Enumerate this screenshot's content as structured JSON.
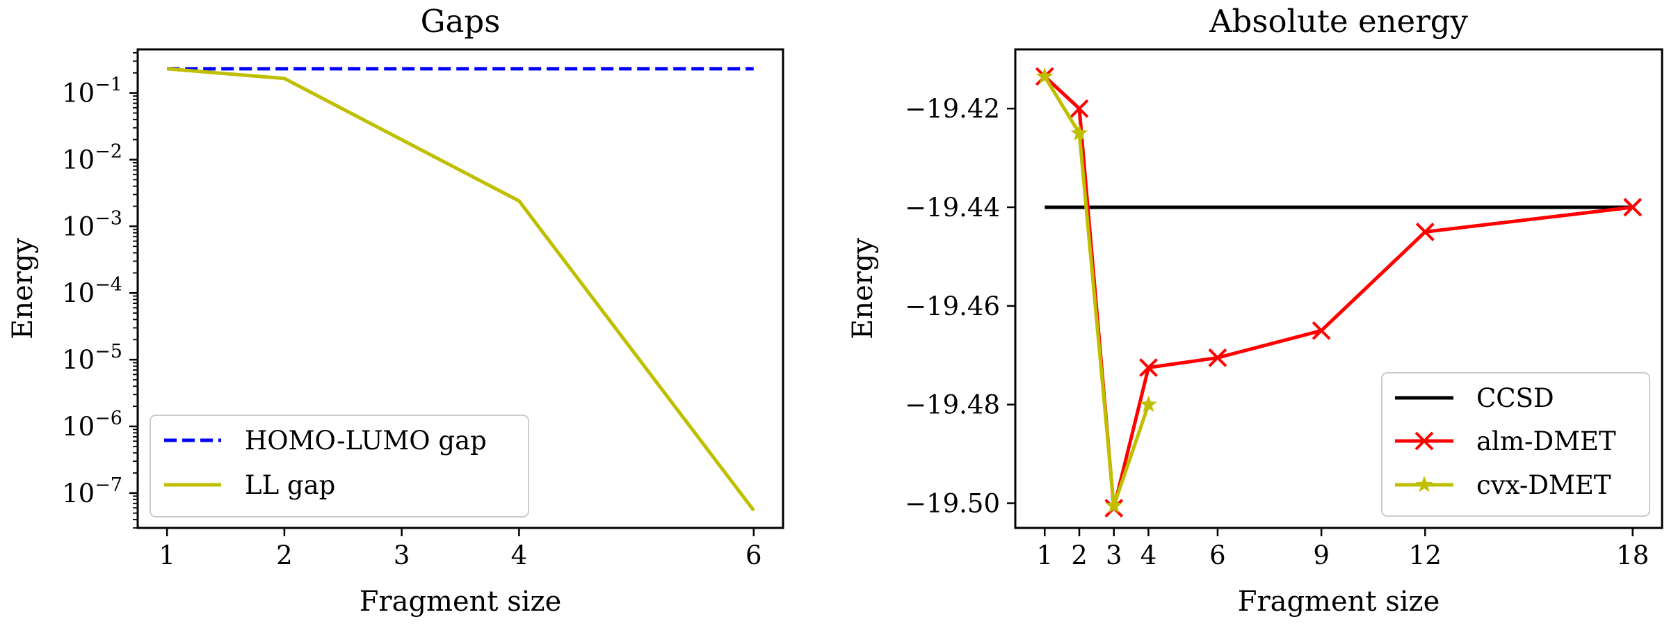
{
  "chart_data": [
    {
      "type": "line",
      "title": "Gaps",
      "xlabel": "Fragment size",
      "ylabel": "Energy",
      "yscale": "log",
      "xlim": [
        0.75,
        6.25
      ],
      "ylim": [
        3e-08,
        0.45
      ],
      "x_ticks": [
        1,
        2,
        3,
        4,
        6
      ],
      "x_tick_labels": [
        "1",
        "2",
        "3",
        "4",
        "6"
      ],
      "y_ticks": [
        0.1,
        0.01,
        0.001,
        0.0001,
        1e-05,
        1e-06,
        1e-07
      ],
      "y_tick_labels": [
        {
          "base": "10",
          "exp": "−1"
        },
        {
          "base": "10",
          "exp": "−2"
        },
        {
          "base": "10",
          "exp": "−3"
        },
        {
          "base": "10",
          "exp": "−4"
        },
        {
          "base": "10",
          "exp": "−5"
        },
        {
          "base": "10",
          "exp": "−6"
        },
        {
          "base": "10",
          "exp": "−7"
        }
      ],
      "grid": false,
      "legend_position": "lower-left",
      "series": [
        {
          "name": "HOMO-LUMO gap",
          "color": "#0000ff",
          "style": "dashed",
          "marker": "none",
          "x": [
            1,
            2,
            3,
            4,
            6
          ],
          "y": [
            0.23,
            0.23,
            0.23,
            0.23,
            0.23
          ]
        },
        {
          "name": "LL gap",
          "color": "#bfbf00",
          "style": "solid",
          "marker": "none",
          "x": [
            1,
            2,
            4,
            6
          ],
          "y": [
            0.23,
            0.165,
            0.0024,
            5.5e-08
          ]
        }
      ]
    },
    {
      "type": "line",
      "title": "Absolute energy",
      "xlabel": "Fragment size",
      "ylabel": "Energy",
      "yscale": "linear",
      "xlim": [
        0.15,
        18.85
      ],
      "ylim": [
        -19.505,
        -19.408
      ],
      "x_ticks": [
        1,
        2,
        3,
        4,
        6,
        9,
        12,
        18
      ],
      "x_tick_labels": [
        "1",
        "2",
        "3",
        "4",
        "6",
        "9",
        "12",
        "18"
      ],
      "y_ticks": [
        -19.42,
        -19.44,
        -19.46,
        -19.48,
        -19.5
      ],
      "y_tick_labels": [
        "−19.42",
        "−19.44",
        "−19.46",
        "−19.48",
        "−19.50"
      ],
      "grid": false,
      "legend_position": "lower-right",
      "series": [
        {
          "name": "CCSD",
          "color": "#000000",
          "style": "solid",
          "marker": "none",
          "x": [
            1,
            18
          ],
          "y": [
            -19.44,
            -19.44
          ]
        },
        {
          "name": "alm-DMET",
          "color": "#ff0000",
          "style": "solid",
          "marker": "x",
          "x": [
            1,
            2,
            3,
            4,
            6,
            9,
            12,
            18
          ],
          "y": [
            -19.4135,
            -19.42,
            -19.501,
            -19.4725,
            -19.4705,
            -19.465,
            -19.445,
            -19.44
          ]
        },
        {
          "name": "cvx-DMET",
          "color": "#bfbf00",
          "style": "solid",
          "marker": "star",
          "x": [
            1,
            2,
            3,
            4
          ],
          "y": [
            -19.4135,
            -19.425,
            -19.5005,
            -19.48
          ]
        }
      ]
    }
  ]
}
